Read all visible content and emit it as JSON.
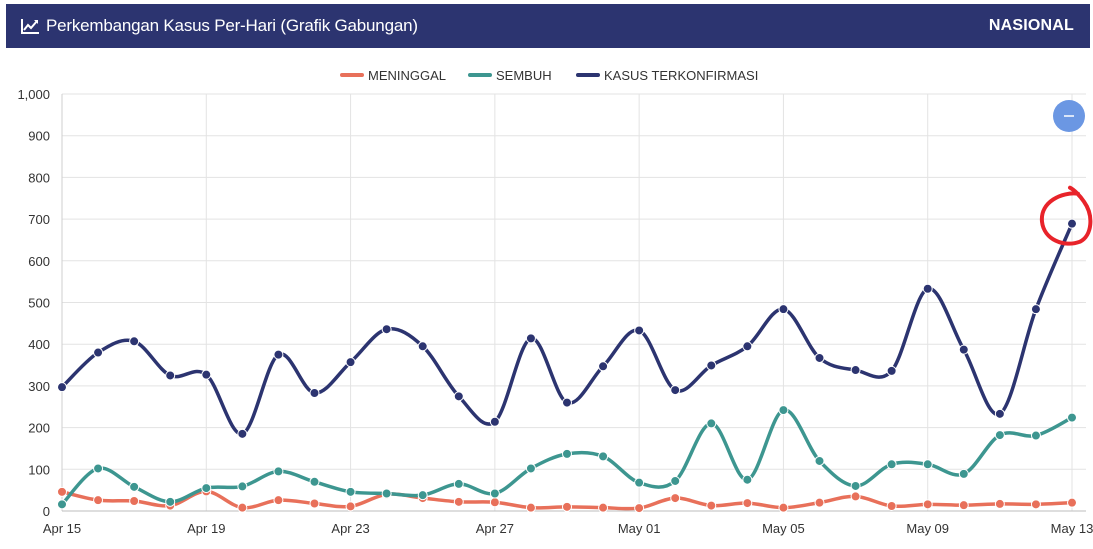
{
  "header": {
    "title": "Perkembangan Kasus Per-Hari (Grafik Gabungan)",
    "region": "NASIONAL",
    "icon": "line-chart-icon",
    "background": "#2c3470"
  },
  "zoom_button": {
    "icon": "minus-icon",
    "color": "#6b97e3"
  },
  "annotation": {
    "type": "hand-drawn circle",
    "color": "#e8232a"
  },
  "chart_data": {
    "type": "line",
    "title": "Perkembangan Kasus Per-Hari (Grafik Gabungan)",
    "x": [
      "Apr 15",
      "Apr 16",
      "Apr 17",
      "Apr 18",
      "Apr 19",
      "Apr 20",
      "Apr 21",
      "Apr 22",
      "Apr 23",
      "Apr 24",
      "Apr 25",
      "Apr 26",
      "Apr 27",
      "Apr 28",
      "Apr 29",
      "Apr 30",
      "May 01",
      "May 02",
      "May 03",
      "May 04",
      "May 05",
      "May 06",
      "May 07",
      "May 08",
      "May 09",
      "May 10",
      "May 11",
      "May 12",
      "May 13"
    ],
    "x_tick_labels": [
      "Apr 15",
      "Apr 19",
      "Apr 23",
      "Apr 27",
      "May 01",
      "May 05",
      "May 09",
      "May 13"
    ],
    "y_tick_labels": [
      "0",
      "100",
      "200",
      "300",
      "400",
      "500",
      "600",
      "700",
      "800",
      "900",
      "1,000"
    ],
    "ylim": [
      0,
      1000
    ],
    "grid": true,
    "legend_position": "top-center",
    "series": [
      {
        "name": "MENINGGAL",
        "color": "#e8705a",
        "values": [
          46,
          26,
          24,
          13,
          47,
          8,
          26,
          18,
          11,
          40,
          31,
          22,
          21,
          8,
          10,
          8,
          7,
          31,
          13,
          19,
          8,
          20,
          35,
          12,
          16,
          14,
          17,
          16,
          20
        ]
      },
      {
        "name": "SEMBUH",
        "color": "#3d9690",
        "values": [
          16,
          102,
          58,
          22,
          55,
          59,
          95,
          70,
          46,
          42,
          38,
          65,
          42,
          102,
          137,
          131,
          68,
          72,
          210,
          75,
          242,
          120,
          60,
          112,
          112,
          89,
          182,
          181,
          224
        ]
      },
      {
        "name": "KASUS TERKONFIRMASI",
        "color": "#2c3470",
        "values": [
          297,
          380,
          407,
          325,
          327,
          185,
          375,
          283,
          357,
          436,
          395,
          275,
          214,
          414,
          260,
          347,
          433,
          290,
          349,
          395,
          484,
          367,
          338,
          336,
          533,
          387,
          233,
          484,
          689
        ]
      }
    ]
  }
}
